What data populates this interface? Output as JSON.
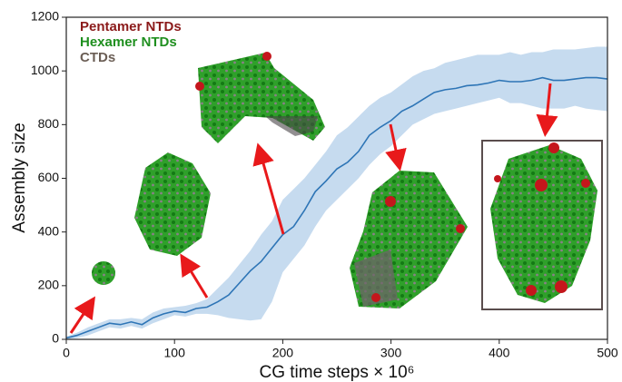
{
  "chart_data": {
    "type": "line",
    "x_label": "CG time steps × 10⁶",
    "y_label": "Assembly size",
    "annotations": [
      {
        "text": "Pentamer NTDs",
        "color": "#8b1a1a"
      },
      {
        "text": "Hexamer NTDs",
        "color": "#1f8f1f"
      },
      {
        "text": "CTDs",
        "color": "#6b5e55"
      }
    ],
    "x": [
      0,
      10,
      20,
      30,
      40,
      50,
      60,
      70,
      80,
      90,
      100,
      110,
      120,
      130,
      140,
      150,
      160,
      170,
      180,
      190,
      200,
      210,
      220,
      230,
      240,
      250,
      260,
      270,
      280,
      290,
      300,
      310,
      320,
      330,
      340,
      350,
      360,
      370,
      380,
      390,
      400,
      410,
      420,
      430,
      440,
      450,
      460,
      470,
      480,
      490,
      500
    ],
    "series": [
      {
        "color": "#2e75b6",
        "band_color": "#c6dbef",
        "values": [
          5,
          15,
          30,
          45,
          60,
          55,
          65,
          55,
          80,
          95,
          105,
          100,
          115,
          120,
          140,
          165,
          210,
          255,
          290,
          340,
          390,
          420,
          480,
          550,
          590,
          635,
          660,
          700,
          760,
          790,
          815,
          850,
          870,
          895,
          920,
          930,
          935,
          945,
          948,
          955,
          965,
          960,
          960,
          965,
          975,
          965,
          965,
          970,
          975,
          975,
          970
        ],
        "upper": [
          10,
          25,
          45,
          60,
          75,
          75,
          80,
          75,
          100,
          115,
          120,
          125,
          135,
          150,
          190,
          230,
          280,
          330,
          390,
          440,
          520,
          560,
          600,
          650,
          700,
          760,
          790,
          830,
          870,
          900,
          920,
          950,
          980,
          1000,
          1010,
          1030,
          1040,
          1050,
          1060,
          1060,
          1060,
          1070,
          1060,
          1070,
          1070,
          1080,
          1080,
          1080,
          1085,
          1090,
          1090
        ],
        "lower": [
          0,
          5,
          15,
          30,
          45,
          40,
          50,
          40,
          60,
          75,
          90,
          85,
          95,
          95,
          90,
          80,
          75,
          70,
          75,
          140,
          250,
          300,
          350,
          420,
          480,
          520,
          560,
          600,
          650,
          690,
          720,
          760,
          800,
          820,
          840,
          850,
          860,
          870,
          880,
          890,
          900,
          880,
          880,
          870,
          860,
          860,
          860,
          870,
          860,
          855,
          850
        ]
      }
    ],
    "xlim": [
      0,
      500
    ],
    "xticks": [
      0,
      100,
      200,
      300,
      400,
      500
    ],
    "ylim": [
      0,
      1200
    ],
    "yticks": [
      0,
      200,
      400,
      600,
      800,
      1000,
      1200
    ]
  }
}
